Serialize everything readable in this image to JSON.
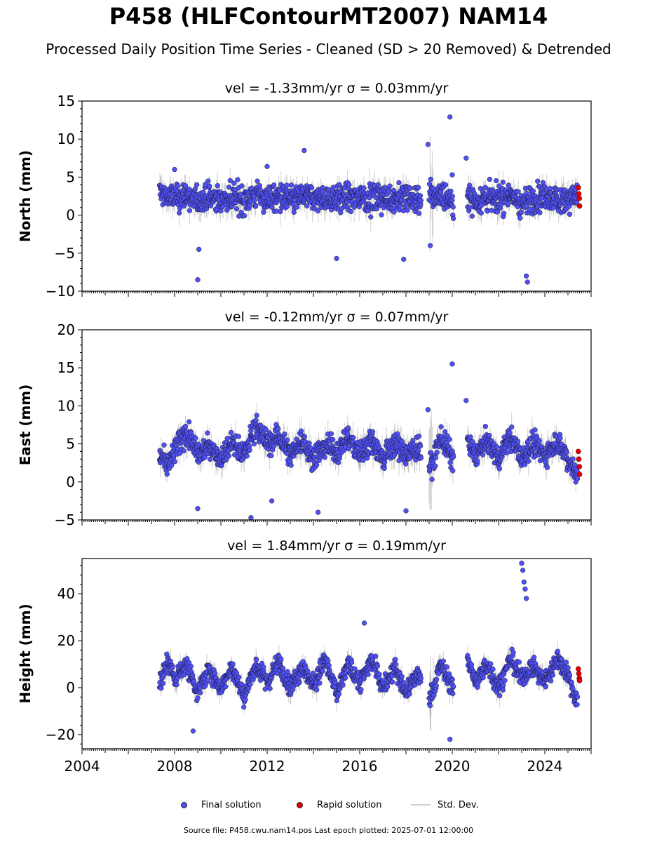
{
  "header": {
    "title": "P458 (HLFContourMT2007) NAM14",
    "subtitle": "Processed Daily Position Time Series - Cleaned (SD > 20 Removed) & Detrended"
  },
  "legend": {
    "final": "Final solution",
    "rapid": "Rapid solution",
    "std": "Std. Dev."
  },
  "footer": {
    "text": "Source file: P458.cwu.nam14.pos  Last epoch plotted: 2025-07-01 12:00:00"
  },
  "colors": {
    "final": "#5050f0",
    "rapid": "#e00000",
    "error_bar": "#a0a0a0"
  },
  "chart_data": [
    {
      "type": "scatter",
      "title": "vel = -1.33mm/yr   σ = 0.03mm/yr",
      "ylabel": "North (mm)",
      "xlim": [
        2004,
        2026
      ],
      "ylim": [
        -10,
        15
      ],
      "yticks": [
        -10,
        -5,
        0,
        5,
        10,
        15
      ],
      "xticks": [],
      "series": [
        {
          "name": "Final solution",
          "x": [
            2007.4,
            2007.7,
            2008.0,
            2008.5,
            2009.0,
            2009.5,
            2010.0,
            2010.5,
            2011.0,
            2011.5,
            2012.0,
            2012.5,
            2013.0,
            2013.5,
            2014.0,
            2014.5,
            2015.0,
            2015.5,
            2016.0,
            2016.5,
            2017.0,
            2017.5,
            2018.0,
            2018.5,
            2019.0,
            2019.5,
            2020.0,
            2020.7,
            2021.0,
            2021.5,
            2022.0,
            2022.5,
            2023.0,
            2023.5,
            2024.0,
            2024.5,
            2025.0,
            2025.3
          ],
          "y": [
            3.0,
            2.5,
            2.2,
            2.6,
            1.8,
            2.3,
            2.0,
            2.4,
            2.1,
            2.6,
            2.2,
            2.4,
            2.0,
            2.5,
            2.3,
            2.1,
            2.4,
            2.2,
            2.5,
            2.0,
            2.3,
            2.1,
            2.4,
            2.0,
            2.5,
            2.8,
            1.8,
            2.4,
            2.0,
            2.3,
            2.1,
            2.6,
            1.5,
            2.2,
            2.4,
            2.0,
            2.3,
            2.5
          ]
        },
        {
          "name": "Rapid solution",
          "x": [
            2025.45,
            2025.47,
            2025.49,
            2025.5
          ],
          "y": [
            3.6,
            2.8,
            2.2,
            1.2
          ]
        }
      ],
      "outliers_x": [
        2008.0,
        2009.0,
        2009.05,
        2012.0,
        2013.6,
        2015.0,
        2017.9,
        2018.95,
        2019.05,
        2019.9,
        2020.0,
        2020.6,
        2023.2,
        2023.25
      ],
      "outliers_y": [
        6.0,
        -8.5,
        -4.5,
        6.4,
        8.5,
        -5.7,
        -5.8,
        9.3,
        -4.0,
        12.9,
        5.3,
        7.5,
        -8.0,
        -8.8
      ]
    },
    {
      "type": "scatter",
      "title": "vel = -0.12mm/yr   σ = 0.07mm/yr",
      "ylabel": "East (mm)",
      "xlim": [
        2004,
        2026
      ],
      "ylim": [
        -5,
        20
      ],
      "yticks": [
        -5,
        0,
        5,
        10,
        15,
        20
      ],
      "xticks": [],
      "series": [
        {
          "name": "Final solution",
          "x": [
            2007.4,
            2007.7,
            2008.0,
            2008.5,
            2009.0,
            2009.5,
            2010.0,
            2010.5,
            2011.0,
            2011.5,
            2012.0,
            2012.5,
            2013.0,
            2013.5,
            2014.0,
            2014.5,
            2015.0,
            2015.5,
            2016.0,
            2016.5,
            2017.0,
            2017.5,
            2018.0,
            2018.5,
            2019.0,
            2019.5,
            2020.0,
            2020.7,
            2021.0,
            2021.5,
            2022.0,
            2022.5,
            2023.0,
            2023.5,
            2024.0,
            2024.5,
            2025.0,
            2025.3
          ],
          "y": [
            3.5,
            2.0,
            4.0,
            6.5,
            3.5,
            5.0,
            3.0,
            5.5,
            3.5,
            7.5,
            5.0,
            6.0,
            3.5,
            5.5,
            3.0,
            5.0,
            4.0,
            6.0,
            3.5,
            5.5,
            3.0,
            5.0,
            3.5,
            4.5,
            1.5,
            6.0,
            3.0,
            5.0,
            3.5,
            5.5,
            3.0,
            6.0,
            3.0,
            5.0,
            3.5,
            5.5,
            3.0,
            1.5
          ]
        },
        {
          "name": "Rapid solution",
          "x": [
            2025.45,
            2025.47,
            2025.49,
            2025.5
          ],
          "y": [
            4.0,
            3.0,
            2.0,
            1.0
          ]
        }
      ],
      "outliers_x": [
        2009.0,
        2011.3,
        2012.2,
        2014.2,
        2018.0,
        2018.95,
        2020.0,
        2020.6
      ],
      "outliers_y": [
        -3.5,
        -4.7,
        -2.5,
        -4.0,
        -3.8,
        9.5,
        15.5,
        10.7
      ]
    },
    {
      "type": "scatter",
      "title": "vel = 1.84mm/yr   σ = 0.19mm/yr",
      "ylabel": "Height (mm)",
      "xlim": [
        2004,
        2026
      ],
      "ylim": [
        -26,
        55
      ],
      "yticks": [
        -20,
        0,
        20,
        40
      ],
      "xticks": [
        "2004",
        "2008",
        "2012",
        "2016",
        "2020",
        "2024"
      ],
      "series": [
        {
          "name": "Final solution",
          "x": [
            2007.4,
            2007.7,
            2008.0,
            2008.5,
            2009.0,
            2009.5,
            2010.0,
            2010.5,
            2011.0,
            2011.5,
            2012.0,
            2012.5,
            2013.0,
            2013.5,
            2014.0,
            2014.5,
            2015.0,
            2015.5,
            2016.0,
            2016.5,
            2017.0,
            2017.5,
            2018.0,
            2018.5,
            2019.0,
            2019.5,
            2020.0,
            2020.7,
            2021.0,
            2021.5,
            2022.0,
            2022.5,
            2023.0,
            2023.5,
            2024.0,
            2024.5,
            2025.0,
            2025.3
          ],
          "y": [
            2.0,
            12.0,
            4.0,
            10.0,
            -2.0,
            8.0,
            0.0,
            9.0,
            -4.0,
            10.0,
            2.0,
            11.0,
            0.0,
            9.0,
            1.0,
            12.0,
            -3.0,
            10.0,
            2.0,
            12.0,
            0.0,
            8.0,
            -2.0,
            6.0,
            -6.0,
            10.0,
            0.0,
            12.0,
            2.0,
            10.0,
            0.0,
            12.0,
            4.0,
            9.0,
            2.0,
            12.0,
            6.0,
            -4.0
          ]
        },
        {
          "name": "Rapid solution",
          "x": [
            2025.45,
            2025.47,
            2025.49,
            2025.5
          ],
          "y": [
            8.0,
            6.0,
            4.0,
            3.0
          ]
        }
      ],
      "outliers_x": [
        2008.8,
        2016.2,
        2019.9,
        2023.0,
        2023.05,
        2023.1,
        2023.15,
        2023.2
      ],
      "outliers_y": [
        -18.5,
        27.5,
        -22.0,
        53.0,
        50.0,
        45.0,
        42.0,
        38.0
      ]
    }
  ]
}
